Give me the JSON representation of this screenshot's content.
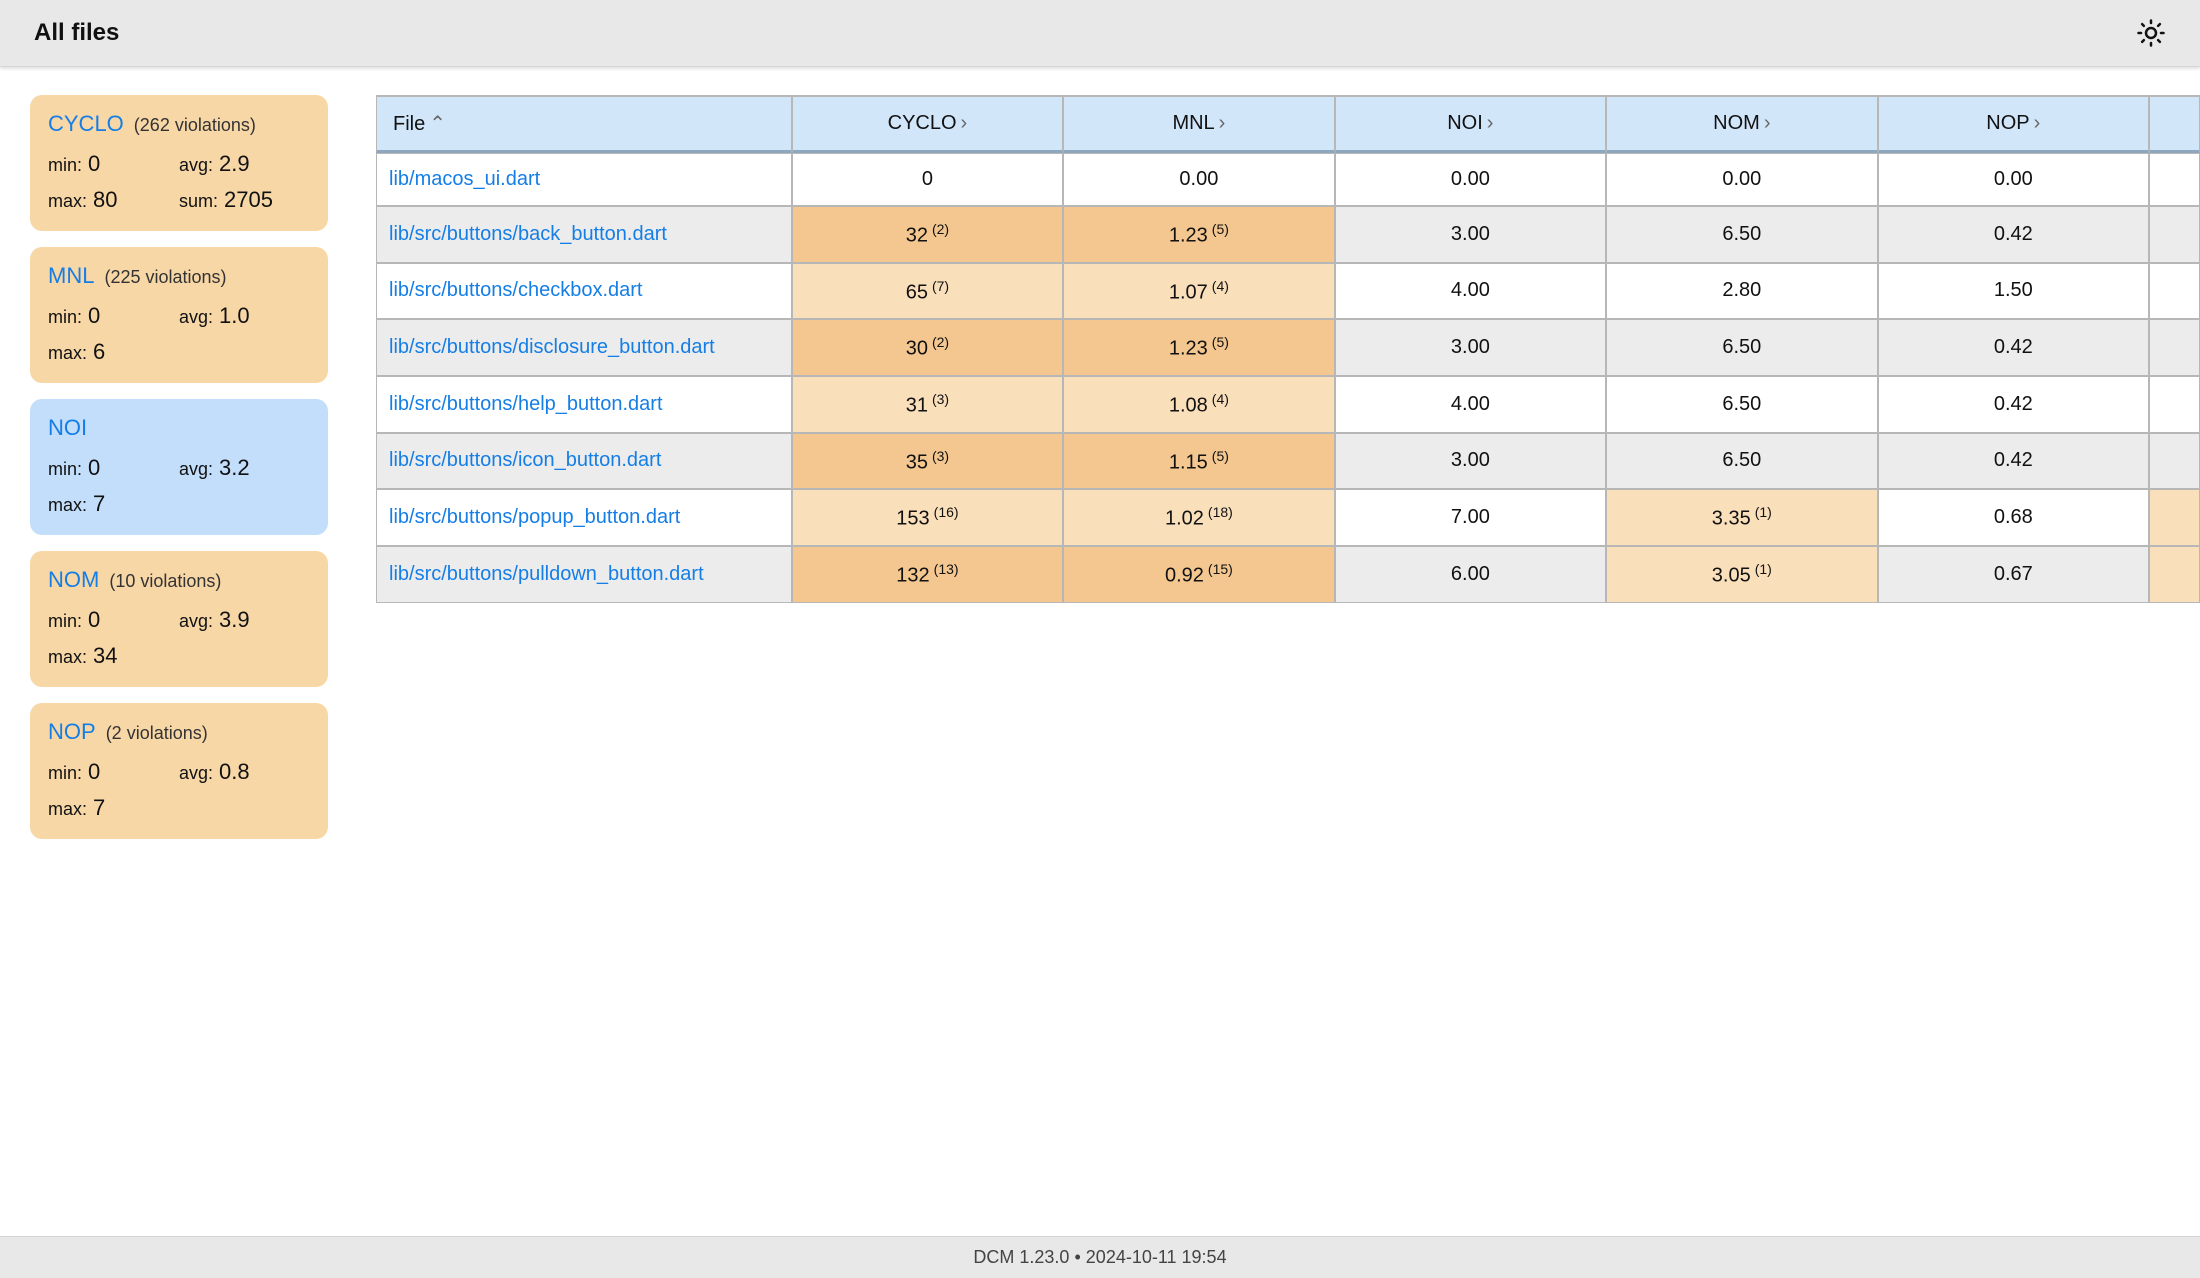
{
  "header": {
    "title": "All files"
  },
  "footer": {
    "tool": "DCM 1.23.0",
    "separator": "•",
    "timestamp": "2024-10-11 19:54"
  },
  "colors": {
    "card_orange": "#f8d7a7",
    "card_blue": "#c2defb",
    "table_header_bg": "#d2e6fa",
    "row_odd_bg": "#ececec",
    "highlight_light": "#fadfbb",
    "highlight_mid": "#f3c78f",
    "link": "#157ee6",
    "border": "#b7b7b7"
  },
  "sidebar": {
    "cards": [
      {
        "name": "CYCLO",
        "violations_text": "(262 violations)",
        "color": "orange",
        "stats": [
          {
            "label": "min:",
            "value": "0"
          },
          {
            "label": "avg:",
            "value": "2.9"
          },
          {
            "label": "max:",
            "value": "80"
          },
          {
            "label": "sum:",
            "value": "2705"
          }
        ]
      },
      {
        "name": "MNL",
        "violations_text": "(225 violations)",
        "color": "orange",
        "stats": [
          {
            "label": "min:",
            "value": "0"
          },
          {
            "label": "avg:",
            "value": "1.0"
          },
          {
            "label": "max:",
            "value": "6"
          }
        ]
      },
      {
        "name": "NOI",
        "violations_text": "",
        "color": "blue",
        "stats": [
          {
            "label": "min:",
            "value": "0"
          },
          {
            "label": "avg:",
            "value": "3.2"
          },
          {
            "label": "max:",
            "value": "7"
          }
        ]
      },
      {
        "name": "NOM",
        "violations_text": "(10 violations)",
        "color": "orange",
        "stats": [
          {
            "label": "min:",
            "value": "0"
          },
          {
            "label": "avg:",
            "value": "3.9"
          },
          {
            "label": "max:",
            "value": "34"
          }
        ]
      },
      {
        "name": "NOP",
        "violations_text": "(2 violations)",
        "color": "orange",
        "stats": [
          {
            "label": "min:",
            "value": "0"
          },
          {
            "label": "avg:",
            "value": "0.8"
          },
          {
            "label": "max:",
            "value": "7"
          }
        ]
      }
    ]
  },
  "table": {
    "columns": [
      {
        "key": "file",
        "label": "File",
        "sort": "asc"
      },
      {
        "key": "cyclo",
        "label": "CYCLO"
      },
      {
        "key": "mnl",
        "label": "MNL"
      },
      {
        "key": "noi",
        "label": "NOI"
      },
      {
        "key": "nom",
        "label": "NOM"
      },
      {
        "key": "nop",
        "label": "NOP"
      }
    ],
    "rows": [
      {
        "file": "lib/macos_ui.dart",
        "cells": [
          {
            "v": "0",
            "hl": 0
          },
          {
            "v": "0.00",
            "hl": 0
          },
          {
            "v": "0.00",
            "hl": 0
          },
          {
            "v": "0.00",
            "hl": 0
          },
          {
            "v": "0.00",
            "hl": 0
          }
        ],
        "extra_hl": 0
      },
      {
        "file": "lib/src/buttons/back_button.dart",
        "cells": [
          {
            "v": "32",
            "sup": "(2)",
            "hl": 2
          },
          {
            "v": "1.23",
            "sup": "(5)",
            "hl": 2
          },
          {
            "v": "3.00",
            "hl": 0
          },
          {
            "v": "6.50",
            "hl": 0
          },
          {
            "v": "0.42",
            "hl": 0
          }
        ],
        "extra_hl": 0
      },
      {
        "file": "lib/src/buttons/checkbox.dart",
        "cells": [
          {
            "v": "65",
            "sup": "(7)",
            "hl": 1
          },
          {
            "v": "1.07",
            "sup": "(4)",
            "hl": 1
          },
          {
            "v": "4.00",
            "hl": 0
          },
          {
            "v": "2.80",
            "hl": 0
          },
          {
            "v": "1.50",
            "hl": 0
          }
        ],
        "extra_hl": 0
      },
      {
        "file": "lib/src/buttons/disclosure_button.dart",
        "cells": [
          {
            "v": "30",
            "sup": "(2)",
            "hl": 2
          },
          {
            "v": "1.23",
            "sup": "(5)",
            "hl": 2
          },
          {
            "v": "3.00",
            "hl": 0
          },
          {
            "v": "6.50",
            "hl": 0
          },
          {
            "v": "0.42",
            "hl": 0
          }
        ],
        "extra_hl": 0
      },
      {
        "file": "lib/src/buttons/help_button.dart",
        "cells": [
          {
            "v": "31",
            "sup": "(3)",
            "hl": 1
          },
          {
            "v": "1.08",
            "sup": "(4)",
            "hl": 1
          },
          {
            "v": "4.00",
            "hl": 0
          },
          {
            "v": "6.50",
            "hl": 0
          },
          {
            "v": "0.42",
            "hl": 0
          }
        ],
        "extra_hl": 0
      },
      {
        "file": "lib/src/buttons/icon_button.dart",
        "cells": [
          {
            "v": "35",
            "sup": "(3)",
            "hl": 2
          },
          {
            "v": "1.15",
            "sup": "(5)",
            "hl": 2
          },
          {
            "v": "3.00",
            "hl": 0
          },
          {
            "v": "6.50",
            "hl": 0
          },
          {
            "v": "0.42",
            "hl": 0
          }
        ],
        "extra_hl": 0
      },
      {
        "file": "lib/src/buttons/popup_button.dart",
        "cells": [
          {
            "v": "153",
            "sup": "(16)",
            "hl": 1
          },
          {
            "v": "1.02",
            "sup": "(18)",
            "hl": 1
          },
          {
            "v": "7.00",
            "hl": 0
          },
          {
            "v": "3.35",
            "sup": "(1)",
            "hl": 1
          },
          {
            "v": "0.68",
            "hl": 0
          }
        ],
        "extra_hl": 1
      },
      {
        "file": "lib/src/buttons/pulldown_button.dart",
        "cells": [
          {
            "v": "132",
            "sup": "(13)",
            "hl": 2
          },
          {
            "v": "0.92",
            "sup": "(15)",
            "hl": 2
          },
          {
            "v": "6.00",
            "hl": 0
          },
          {
            "v": "3.05",
            "sup": "(1)",
            "hl": 1
          },
          {
            "v": "0.67",
            "hl": 0
          }
        ],
        "extra_hl": 1
      }
    ]
  }
}
